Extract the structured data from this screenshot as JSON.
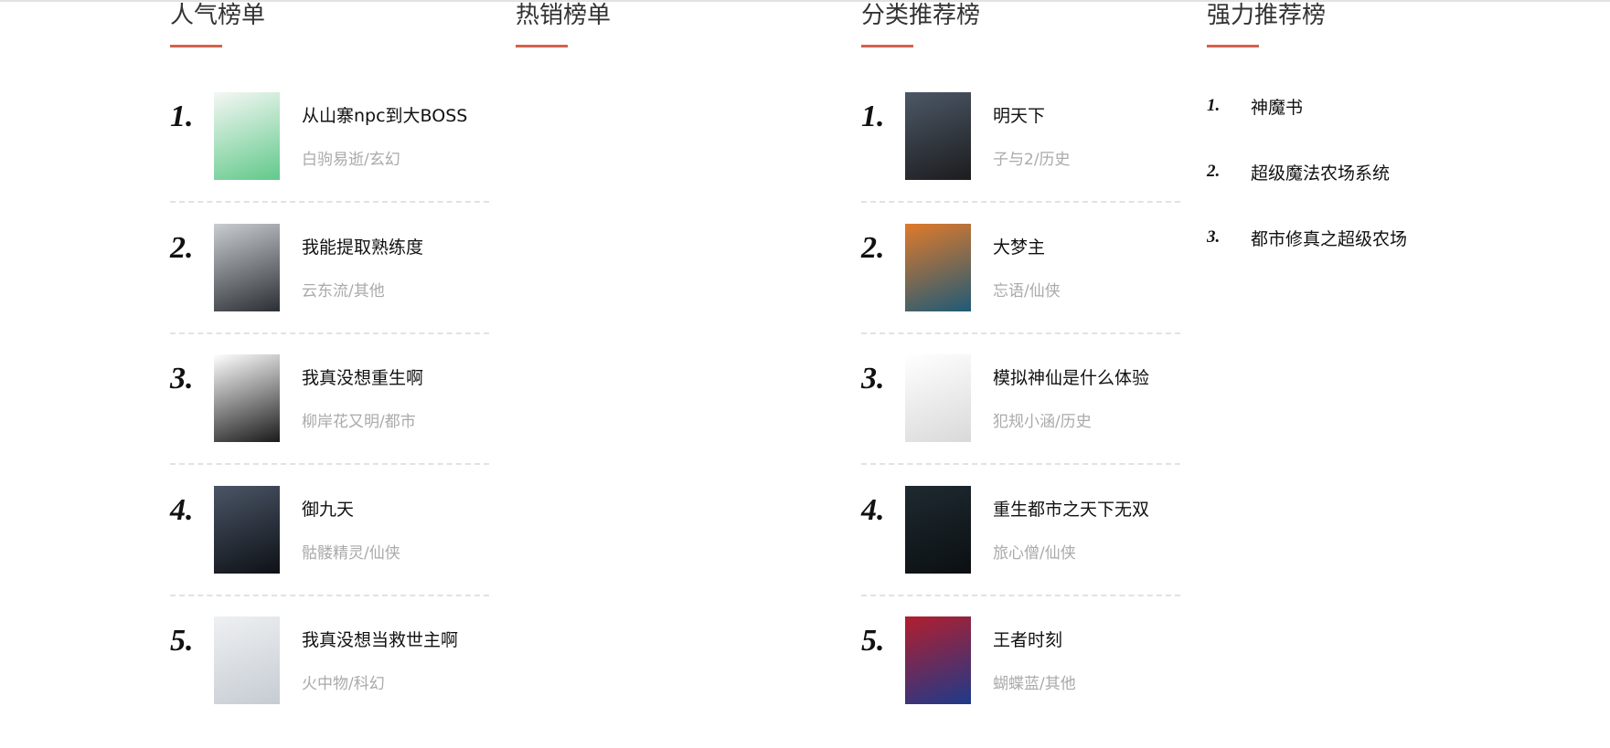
{
  "accent_color": "#d4614c",
  "columns": [
    {
      "heading": "人气榜单",
      "items": [
        {
          "rank": "1.",
          "title": "从山寨npc到大BOSS",
          "meta": "白驹易逝/玄幻",
          "cover": [
            "#f4f7f4",
            "#61c98a"
          ]
        },
        {
          "rank": "2.",
          "title": "我能提取熟练度",
          "meta": "云东流/其他",
          "cover": [
            "#c9cdd2",
            "#2b2e33"
          ]
        },
        {
          "rank": "3.",
          "title": "我真没想重生啊",
          "meta": "柳岸花又明/都市",
          "cover": [
            "#ffffff",
            "#1a1a1a"
          ]
        },
        {
          "rank": "4.",
          "title": "御九天",
          "meta": "骷髅精灵/仙侠",
          "cover": [
            "#4a5566",
            "#0e1116"
          ]
        },
        {
          "rank": "5.",
          "title": "我真没想当救世主啊",
          "meta": "火中物/科幻",
          "cover": [
            "#eef0f2",
            "#c6ccd3"
          ]
        }
      ]
    },
    {
      "heading": "热销榜单",
      "items": []
    },
    {
      "heading": "分类推荐榜",
      "items": [
        {
          "rank": "1.",
          "title": "明天下",
          "meta": "子与2/历史",
          "cover": [
            "#4c5866",
            "#1c1c1e"
          ]
        },
        {
          "rank": "2.",
          "title": "大梦主",
          "meta": "忘语/仙侠",
          "cover": [
            "#e07a2a",
            "#1f5a77"
          ]
        },
        {
          "rank": "3.",
          "title": "模拟神仙是什么体验",
          "meta": "犯规小涵/历史",
          "cover": [
            "#ffffff",
            "#d9d9d9"
          ]
        },
        {
          "rank": "4.",
          "title": "重生都市之天下无双",
          "meta": "旅心僧/仙侠",
          "cover": [
            "#1e2a30",
            "#0b0f12"
          ]
        },
        {
          "rank": "5.",
          "title": "王者时刻",
          "meta": "蝴蝶蓝/其他",
          "cover": [
            "#b21e2e",
            "#1e3a8a"
          ]
        }
      ]
    },
    {
      "heading": "强力推荐榜",
      "simple": [
        {
          "rank": "1.",
          "title": "神魔书"
        },
        {
          "rank": "2.",
          "title": "超级魔法农场系统"
        },
        {
          "rank": "3.",
          "title": "都市修真之超级农场"
        }
      ]
    }
  ]
}
